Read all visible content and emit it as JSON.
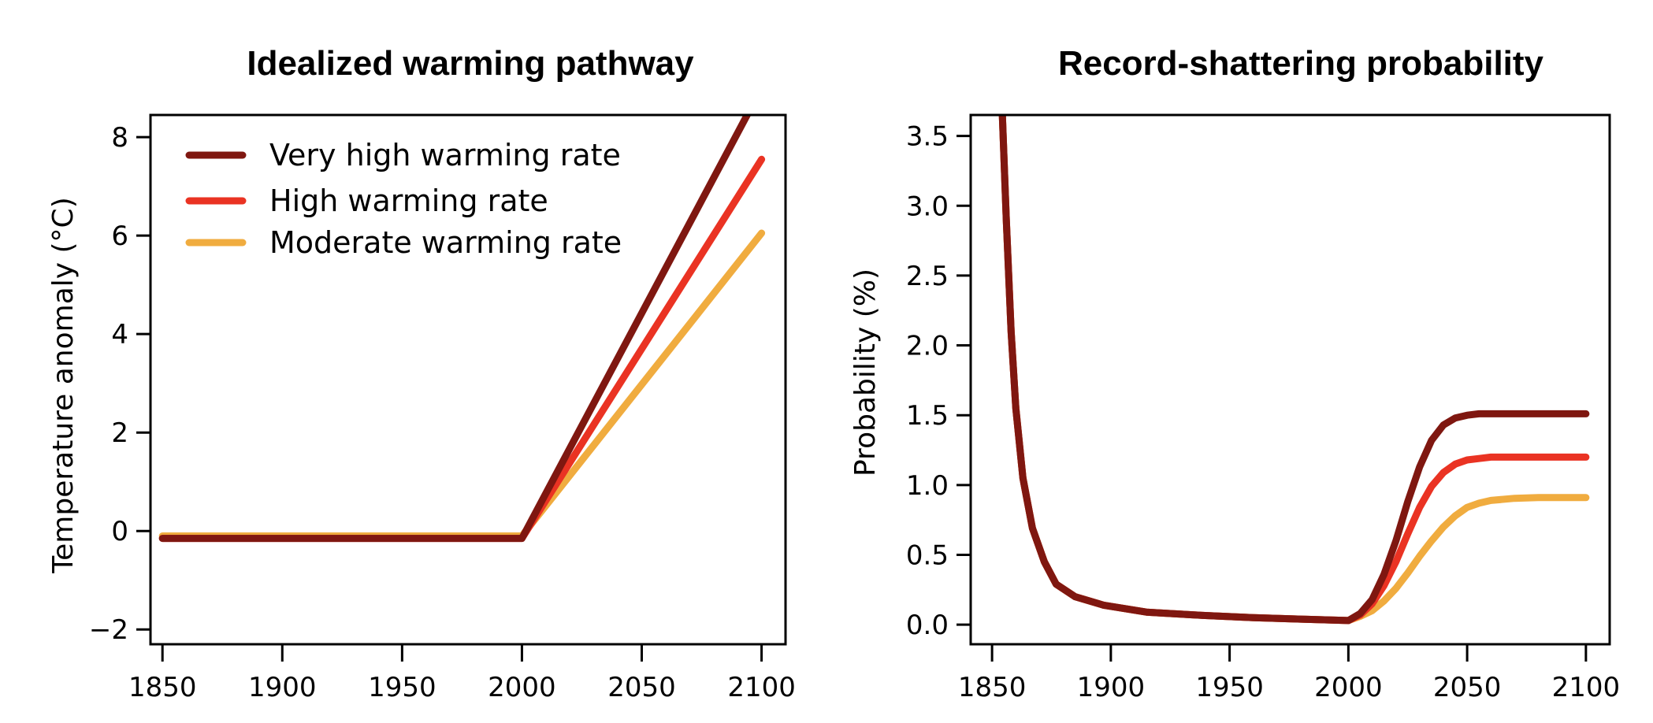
{
  "chart_data": [
    {
      "type": "line",
      "title": "Idealized warming pathway",
      "xlabel": "",
      "ylabel": "Temperature anomaly (°C)",
      "xlim": [
        1845,
        2110
      ],
      "ylim": [
        -2.3,
        8.45
      ],
      "xticks": [
        1850,
        1900,
        1950,
        2000,
        2050,
        2100
      ],
      "xtick_labels": [
        "1850",
        "1900",
        "1950",
        "2000",
        "2050",
        "2100"
      ],
      "yticks": [
        -2,
        0,
        2,
        4,
        6,
        8
      ],
      "ytick_labels": [
        "−2",
        "0",
        "2",
        "4",
        "6",
        "8"
      ],
      "grid": false,
      "legend_position": "top-left",
      "series": [
        {
          "name": "Moderate warming rate",
          "color": "#F0AC3F",
          "x": [
            1850,
            2000,
            2100
          ],
          "y": [
            -0.1,
            -0.1,
            6.05
          ]
        },
        {
          "name": "High warming rate",
          "color": "#EA3323",
          "x": [
            1850,
            2000,
            2100
          ],
          "y": [
            -0.15,
            -0.15,
            7.55
          ]
        },
        {
          "name": "Very high warming rate",
          "color": "#7F1710",
          "x": [
            1850,
            2000,
            2100
          ],
          "y": [
            -0.15,
            -0.15,
            9.0
          ]
        }
      ],
      "legend": [
        {
          "label": "Very high warming rate",
          "color": "#7F1710"
        },
        {
          "label": "High warming rate",
          "color": "#EA3323"
        },
        {
          "label": "Moderate warming rate",
          "color": "#F0AC3F"
        }
      ]
    },
    {
      "type": "line",
      "title": "Record-shattering probability",
      "xlabel": "",
      "ylabel": "Probability (%)",
      "xlim": [
        1841,
        2110
      ],
      "ylim": [
        -0.14,
        3.65
      ],
      "xticks": [
        1850,
        1900,
        1950,
        2000,
        2050,
        2100
      ],
      "xtick_labels": [
        "1850",
        "1900",
        "1950",
        "2000",
        "2050",
        "2100"
      ],
      "yticks": [
        0.0,
        0.5,
        1.0,
        1.5,
        2.0,
        2.5,
        3.0,
        3.5
      ],
      "ytick_labels": [
        "0.0",
        "0.5",
        "1.0",
        "1.5",
        "2.0",
        "2.5",
        "3.0",
        "3.5"
      ],
      "grid": false,
      "series": [
        {
          "name": "Moderate warming rate",
          "color": "#F0AC3F",
          "x": [
            1854,
            1856,
            1858,
            1860,
            1863,
            1867,
            1872,
            1877,
            1885,
            1897,
            1915,
            1935,
            1960,
            1980,
            2000,
            2005,
            2010,
            2015,
            2020,
            2025,
            2030,
            2035,
            2040,
            2045,
            2050,
            2055,
            2060,
            2070,
            2080,
            2090,
            2100
          ],
          "y": [
            3.8,
            2.9,
            2.1,
            1.55,
            1.05,
            0.69,
            0.45,
            0.29,
            0.2,
            0.14,
            0.09,
            0.07,
            0.05,
            0.04,
            0.03,
            0.06,
            0.1,
            0.17,
            0.26,
            0.37,
            0.49,
            0.6,
            0.7,
            0.78,
            0.84,
            0.87,
            0.89,
            0.905,
            0.91,
            0.91,
            0.91
          ]
        },
        {
          "name": "High warming rate",
          "color": "#EA3323",
          "x": [
            1854,
            1856,
            1858,
            1860,
            1863,
            1867,
            1872,
            1877,
            1885,
            1897,
            1915,
            1935,
            1960,
            1980,
            2000,
            2005,
            2010,
            2015,
            2020,
            2025,
            2030,
            2035,
            2040,
            2045,
            2050,
            2055,
            2060,
            2070,
            2080,
            2090,
            2100
          ],
          "y": [
            3.8,
            2.9,
            2.1,
            1.55,
            1.05,
            0.69,
            0.45,
            0.29,
            0.2,
            0.14,
            0.09,
            0.07,
            0.05,
            0.04,
            0.03,
            0.07,
            0.15,
            0.28,
            0.45,
            0.65,
            0.84,
            0.99,
            1.09,
            1.15,
            1.18,
            1.19,
            1.2,
            1.2,
            1.2,
            1.2,
            1.2
          ]
        },
        {
          "name": "Very high warming rate",
          "color": "#7F1710",
          "x": [
            1854,
            1856,
            1858,
            1860,
            1863,
            1867,
            1872,
            1877,
            1885,
            1897,
            1915,
            1935,
            1960,
            1980,
            2000,
            2005,
            2010,
            2015,
            2020,
            2025,
            2030,
            2035,
            2040,
            2045,
            2050,
            2055,
            2060,
            2070,
            2080,
            2090,
            2100
          ],
          "y": [
            3.8,
            2.9,
            2.1,
            1.55,
            1.05,
            0.69,
            0.45,
            0.29,
            0.2,
            0.14,
            0.09,
            0.07,
            0.05,
            0.04,
            0.03,
            0.08,
            0.18,
            0.36,
            0.6,
            0.88,
            1.13,
            1.32,
            1.43,
            1.48,
            1.5,
            1.51,
            1.51,
            1.51,
            1.51,
            1.51,
            1.51
          ]
        }
      ]
    }
  ]
}
